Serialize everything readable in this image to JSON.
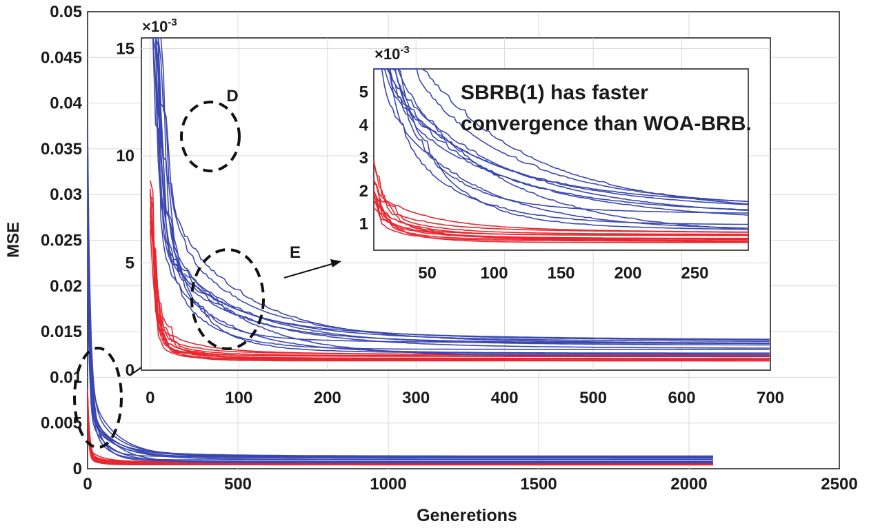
{
  "colors": {
    "series_a": "#e8272f",
    "series_b": "#3b47b0",
    "ellipse": "#111111"
  },
  "chart_data": [
    {
      "id": "main",
      "type": "line",
      "title": "",
      "xlabel": "Generetions",
      "ylabel": "MSE",
      "xlim": [
        0,
        2500
      ],
      "ylim": [
        0,
        0.05
      ],
      "xticks": [
        0,
        500,
        1000,
        1500,
        2000,
        2500
      ],
      "xtick_labels": [
        "0",
        "500",
        "1000",
        "1500",
        "2000",
        "2500"
      ],
      "yticks": [
        0,
        0.005,
        0.01,
        0.015,
        0.02,
        0.025,
        0.03,
        0.035,
        0.04,
        0.045,
        0.05
      ],
      "ytick_labels": [
        "0",
        "0.005",
        "0.01",
        "0.015",
        "0.02",
        "0.025",
        "0.03",
        "0.035",
        "0.04",
        "0.045",
        "0.05"
      ],
      "grid": true,
      "series": [
        {
          "name": "SBRB(1)",
          "color": "#e8272f",
          "runs": 12,
          "x_end": 2100,
          "start_min": 0.0085,
          "start_max": 0.011,
          "final_min": 0.0004,
          "final_max": 0.0007
        },
        {
          "name": "WOA-BRB",
          "color": "#3b47b0",
          "runs": 12,
          "x_end": 2100,
          "start_min": 0.03,
          "start_max": 0.05,
          "final_min": 0.0006,
          "final_max": 0.0014
        }
      ],
      "annotations": [
        {
          "id": "C",
          "text": "",
          "shape": "dashed-ellipse",
          "x": 20,
          "y": 0.0045
        }
      ]
    },
    {
      "id": "inset1",
      "type": "line",
      "title": "",
      "scale_label": "×10",
      "scale_exp": "-3",
      "xlim": [
        -10,
        700
      ],
      "ylim": [
        0,
        15.5
      ],
      "xticks": [
        0,
        100,
        200,
        300,
        400,
        500,
        600,
        700
      ],
      "xtick_labels": [
        "0",
        "100",
        "200",
        "300",
        "400",
        "500",
        "600",
        "700"
      ],
      "yticks": [
        0,
        5,
        10,
        15
      ],
      "ytick_labels": [
        "0",
        "5",
        "10",
        "15"
      ],
      "grid": true,
      "annotations": [
        {
          "id": "D",
          "text": "D",
          "shape": "dashed-ellipse",
          "x": 10,
          "y": 10.5
        },
        {
          "id": "E",
          "text": "E",
          "shape": "dashed-ellipse",
          "x": 30,
          "y": 3.5
        }
      ]
    },
    {
      "id": "inset2",
      "type": "line",
      "title": "",
      "scale_label": "×10",
      "scale_exp": "-3",
      "xlim": [
        10,
        290
      ],
      "ylim": [
        0.2,
        5.7
      ],
      "xticks": [
        50,
        100,
        150,
        200,
        250
      ],
      "xtick_labels": [
        "50",
        "100",
        "150",
        "200",
        "250"
      ],
      "yticks": [
        1,
        2,
        3,
        4,
        5
      ],
      "ytick_labels": [
        "1",
        "2",
        "3",
        "4",
        "5"
      ],
      "grid": false,
      "annotations": [
        {
          "id": "note",
          "text_line1": "SBRB(1) has faster",
          "text_line2": "convergence than WOA-BRB."
        }
      ]
    }
  ]
}
